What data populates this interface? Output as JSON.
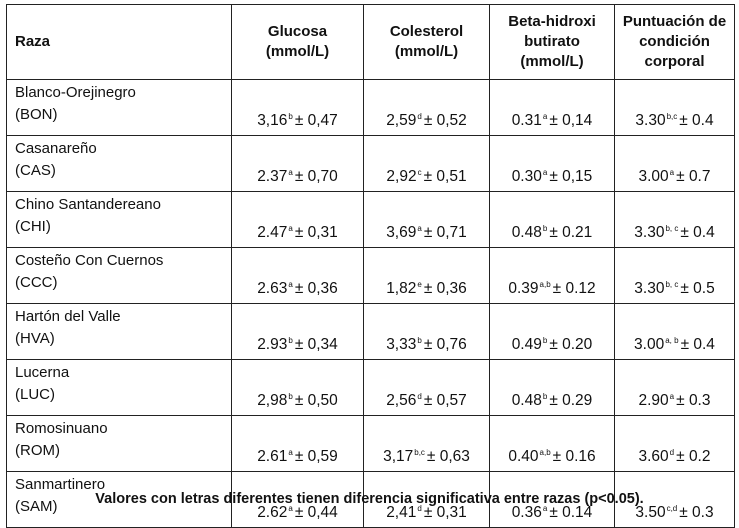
{
  "headers": {
    "raza": "Raza",
    "glucosa": "Glucosa (mmol/L)",
    "colesterol": "Colesterol (mmol/L)",
    "beta": "Beta-hidroxi butirato (mmol/L)",
    "puntuacion": "Puntuación de condición corporal"
  },
  "rows": [
    {
      "name": "Blanco-Orejinegro",
      "code": "(BON)",
      "glucosa": {
        "v": "3,16",
        "s": "b",
        "sd": "± 0,47"
      },
      "colesterol": {
        "v": "2,59",
        "s": "d",
        "sd": "± 0,52"
      },
      "beta": {
        "v": "0.31",
        "s": "a",
        "sd": "± 0,14"
      },
      "puntuacion": {
        "v": "3.30",
        "s": "b,c",
        "sd": "± 0.4"
      }
    },
    {
      "name": "Casanareño",
      "code": "(CAS)",
      "glucosa": {
        "v": "2.37",
        "s": "a",
        "sd": "± 0,70"
      },
      "colesterol": {
        "v": "2,92",
        "s": "c",
        "sd": "± 0,51"
      },
      "beta": {
        "v": "0.30",
        "s": "a",
        "sd": "± 0,15"
      },
      "puntuacion": {
        "v": "3.00",
        "s": "a",
        "sd": "± 0.7"
      }
    },
    {
      "name": "Chino Santandereano",
      "code": "(CHI)",
      "glucosa": {
        "v": "2.47",
        "s": "a",
        "sd": "± 0,31"
      },
      "colesterol": {
        "v": "3,69",
        "s": "a",
        "sd": "± 0,71"
      },
      "beta": {
        "v": "0.48",
        "s": "b",
        "sd": "± 0.21"
      },
      "puntuacion": {
        "v": "3.30",
        "s": "b, c",
        "sd": "± 0.4"
      }
    },
    {
      "name": "Costeño Con Cuernos",
      "code": "(CCC)",
      "glucosa": {
        "v": "2.63",
        "s": "a",
        "sd": "± 0,36"
      },
      "colesterol": {
        "v": "1,82",
        "s": "e",
        "sd": "± 0,36"
      },
      "beta": {
        "v": "0.39",
        "s": "a,b",
        "sd": "± 0.12"
      },
      "puntuacion": {
        "v": "3.30",
        "s": "b, c",
        "sd": "± 0.5"
      }
    },
    {
      "name": "Hartón del Valle",
      "code": "(HVA)",
      "glucosa": {
        "v": "2.93",
        "s": "b",
        "sd": "± 0,34"
      },
      "colesterol": {
        "v": "3,33",
        "s": "b",
        "sd": "± 0,76"
      },
      "beta": {
        "v": "0.49",
        "s": "b",
        "sd": "± 0.20"
      },
      "puntuacion": {
        "v": "3.00",
        "s": "a, b",
        "sd": "± 0.4"
      }
    },
    {
      "name": "Lucerna",
      "code": "(LUC)",
      "glucosa": {
        "v": "2,98",
        "s": "b",
        "sd": "± 0,50"
      },
      "colesterol": {
        "v": "2,56",
        "s": "d",
        "sd": "± 0,57"
      },
      "beta": {
        "v": "0.48",
        "s": "b",
        "sd": "± 0.29"
      },
      "puntuacion": {
        "v": "2.90",
        "s": "a",
        "sd": "± 0.3"
      }
    },
    {
      "name": "Romosinuano",
      "code": "(ROM)",
      "glucosa": {
        "v": "2.61",
        "s": "a",
        "sd": "± 0,59"
      },
      "colesterol": {
        "v": "3,17",
        "s": "b,c",
        "sd": "± 0,63"
      },
      "beta": {
        "v": "0.40",
        "s": "a,b",
        "sd": "± 0.16"
      },
      "puntuacion": {
        "v": "3.60",
        "s": "d",
        "sd": "± 0.2"
      }
    },
    {
      "name": "Sanmartinero",
      "code": "(SAM)",
      "glucosa": {
        "v": "2.62",
        "s": "a",
        "sd": "± 0,44"
      },
      "colesterol": {
        "v": "2,41",
        "s": "d",
        "sd": "± 0,31"
      },
      "beta": {
        "v": "0.36",
        "s": "a",
        "sd": "± 0.14"
      },
      "puntuacion": {
        "v": "3.50",
        "s": "c,d",
        "sd": "± 0.3"
      }
    }
  ],
  "footnote": "Valores con letras diferentes tienen diferencia significativa entre razas (p<0.05)."
}
